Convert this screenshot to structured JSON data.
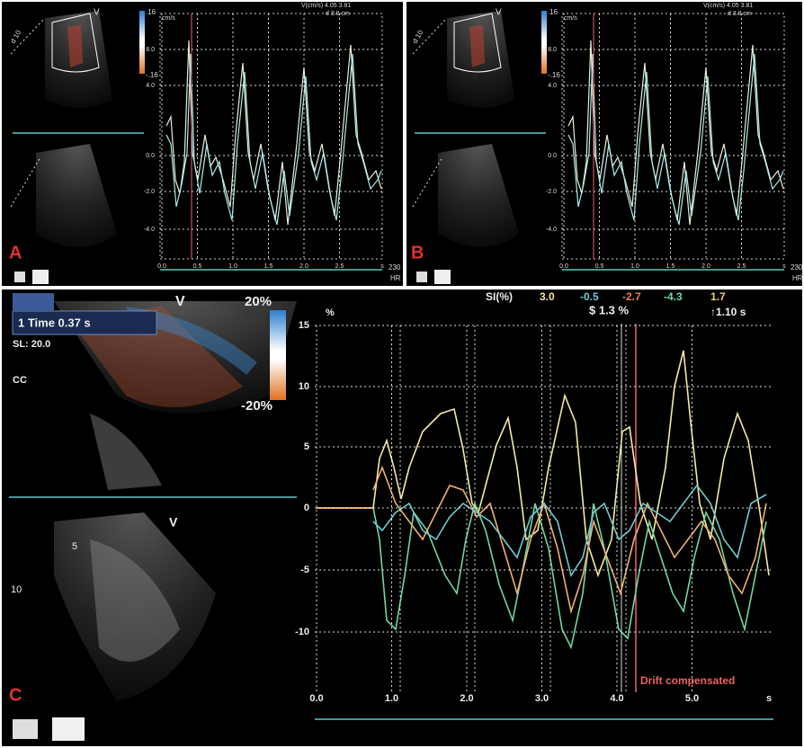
{
  "panels": [
    {
      "label": "A",
      "sector_scale_top": ".16",
      "sector_scale_bottom": "-.16",
      "v_marker": "V",
      "depth_label": "d 10",
      "unit": "cm/s",
      "readout": "V(cm/s) 4.05 3.81",
      "distance": "d 3.8 cm",
      "yticks": [
        "8.0",
        "4.0",
        "0.0",
        "-2.0",
        "-4.0"
      ],
      "xticks": [
        "0.0",
        "0.5",
        "1.0",
        "1.5",
        "2.0",
        "2.5",
        "s"
      ],
      "hr_value": "230",
      "hr_label": "HR"
    },
    {
      "label": "B",
      "sector_scale_top": ".16",
      "sector_scale_bottom": "-.16",
      "v_marker": "V",
      "depth_label": "d 10",
      "unit": "cm/s",
      "readout": "V(cm/s) 4.05 3.81",
      "distance": "d 3.8 cm",
      "yticks": [
        "8.0",
        "4.0",
        "0.0",
        "-2.0",
        "-4.0"
      ],
      "xticks": [
        "0.0",
        "0.5",
        "1.0",
        "1.5",
        "2.0",
        "2.5",
        "s"
      ],
      "hr_value": "230",
      "hr_label": "HR"
    }
  ],
  "panel_c": {
    "label": "C",
    "time_box": "1 Time 0.37 s",
    "sl": "SL: 20.0",
    "cc": "CC",
    "v_marker": "V",
    "scale_top": "20%",
    "scale_bottom": "-20%",
    "si_label": "SI(%)",
    "si_values": [
      "3.0",
      "-0.5",
      "-2.7",
      "-4.3",
      "1.7"
    ],
    "mean": "$ 1.3 %",
    "time_marker": "↑1.10 s",
    "unit": "%",
    "yticks": [
      "15",
      "10",
      "5",
      "0",
      "-5",
      "-10"
    ],
    "xticks": [
      "0.0",
      "1.0",
      "2.0",
      "3.0",
      "4.0",
      "5.0",
      "s"
    ],
    "drift": "Drift compensated",
    "depth_labels": [
      "5",
      "10"
    ]
  }
}
